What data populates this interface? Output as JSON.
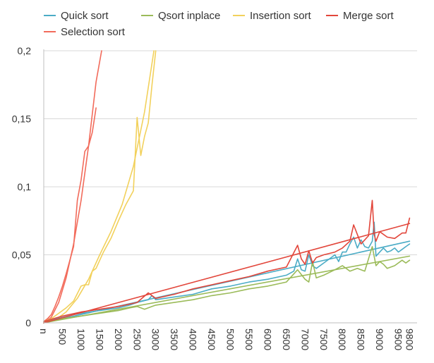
{
  "chart_data": {
    "type": "line",
    "title": "",
    "xlabel": "",
    "ylabel": "",
    "xlim": [
      0,
      10000
    ],
    "ylim": [
      0,
      0.2
    ],
    "y_ticks": [
      {
        "value": 0,
        "label": "0"
      },
      {
        "value": 0.05,
        "label": "0,05"
      },
      {
        "value": 0.1,
        "label": "0,1"
      },
      {
        "value": 0.15,
        "label": "0,15"
      },
      {
        "value": 0.2,
        "label": "0,2"
      }
    ],
    "x_ticks": [
      {
        "value": 0,
        "label": "n"
      },
      {
        "value": 500,
        "label": "500"
      },
      {
        "value": 1000,
        "label": "1000"
      },
      {
        "value": 1500,
        "label": "1500"
      },
      {
        "value": 2000,
        "label": "2000"
      },
      {
        "value": 2500,
        "label": "2500"
      },
      {
        "value": 3000,
        "label": "3000"
      },
      {
        "value": 3500,
        "label": "3500"
      },
      {
        "value": 4000,
        "label": "4000"
      },
      {
        "value": 4500,
        "label": "4500"
      },
      {
        "value": 5000,
        "label": "5000"
      },
      {
        "value": 5500,
        "label": "5500"
      },
      {
        "value": 6000,
        "label": "6000"
      },
      {
        "value": 6500,
        "label": "6500"
      },
      {
        "value": 7000,
        "label": "7000"
      },
      {
        "value": 7500,
        "label": "7500"
      },
      {
        "value": 8000,
        "label": "8000"
      },
      {
        "value": 8500,
        "label": "8500"
      },
      {
        "value": 9000,
        "label": "9000"
      },
      {
        "value": 9500,
        "label": "9500"
      },
      {
        "value": 9800,
        "label": "9800"
      }
    ],
    "grid": "y-major",
    "legend_position": "top",
    "legend": [
      {
        "name": "Quick sort",
        "color": "#4bacc6"
      },
      {
        "name": "Qsort inplace",
        "color": "#9bbb59"
      },
      {
        "name": "Insertion sort",
        "color": "#f2d15c"
      },
      {
        "name": "Merge sort",
        "color": "#e2463b"
      },
      {
        "name": "Selection sort",
        "color": "#f26b5b"
      }
    ],
    "series": [
      {
        "name": "Selection sort",
        "color": "#f26b5b",
        "x": [
          0,
          100,
          200,
          300,
          400,
          500,
          600,
          700,
          800,
          900,
          1000,
          1100,
          1200,
          1300,
          1400
        ],
        "y": [
          0.001,
          0.003,
          0.006,
          0.012,
          0.019,
          0.027,
          0.036,
          0.046,
          0.056,
          0.09,
          0.105,
          0.126,
          0.13,
          0.14,
          0.158
        ]
      },
      {
        "name": "Selection sort trend",
        "color": "#f26b5b",
        "x": [
          0,
          200,
          400,
          600,
          800,
          1000,
          1200,
          1400,
          1550
        ],
        "y": [
          0,
          0.004,
          0.015,
          0.033,
          0.058,
          0.09,
          0.13,
          0.177,
          0.2
        ]
      },
      {
        "name": "Insertion sort",
        "color": "#f2d15c",
        "x": [
          0,
          200,
          400,
          600,
          800,
          1000,
          1100,
          1200,
          1300,
          1400,
          1600,
          1800,
          2000,
          2200,
          2400,
          2500,
          2600,
          2700,
          2800,
          2900,
          3000
        ],
        "y": [
          0.001,
          0.003,
          0.007,
          0.011,
          0.016,
          0.027,
          0.028,
          0.028,
          0.038,
          0.04,
          0.052,
          0.062,
          0.075,
          0.087,
          0.097,
          0.151,
          0.123,
          0.137,
          0.147,
          0.175,
          0.2
        ]
      },
      {
        "name": "Insertion sort trend",
        "color": "#f2d15c",
        "x": [
          0,
          300,
          600,
          900,
          1200,
          1500,
          1800,
          2100,
          2400,
          2700,
          2950
        ],
        "y": [
          0,
          0.002,
          0.008,
          0.018,
          0.032,
          0.05,
          0.067,
          0.087,
          0.115,
          0.155,
          0.2
        ]
      },
      {
        "name": "Quick sort",
        "color": "#4bacc6",
        "x": [
          0,
          500,
          800,
          1000,
          1500,
          2000,
          2300,
          2500,
          2800,
          2900,
          3000,
          3500,
          4000,
          4500,
          5000,
          5500,
          6000,
          6500,
          6700,
          6800,
          6900,
          7000,
          7100,
          7200,
          7300,
          7500,
          7800,
          7900,
          8000,
          8100,
          8200,
          8300,
          8400,
          8500,
          8600,
          8700,
          8800,
          8850,
          8900,
          9000,
          9100,
          9200,
          9300,
          9400,
          9500,
          9600,
          9700,
          9800
        ],
        "y": [
          0.001,
          0.004,
          0.006,
          0.007,
          0.009,
          0.011,
          0.013,
          0.015,
          0.017,
          0.02,
          0.017,
          0.019,
          0.021,
          0.025,
          0.027,
          0.03,
          0.032,
          0.035,
          0.038,
          0.047,
          0.039,
          0.038,
          0.05,
          0.042,
          0.04,
          0.044,
          0.05,
          0.045,
          0.052,
          0.052,
          0.058,
          0.063,
          0.055,
          0.061,
          0.056,
          0.055,
          0.06,
          0.074,
          0.049,
          0.052,
          0.055,
          0.052,
          0.053,
          0.055,
          0.052,
          0.054,
          0.056,
          0.058
        ]
      },
      {
        "name": "Quick sort trend",
        "color": "#4bacc6",
        "x": [
          0,
          9800
        ],
        "y": [
          0,
          0.06
        ]
      },
      {
        "name": "Qsort inplace",
        "color": "#9bbb59",
        "x": [
          0,
          500,
          1000,
          1500,
          2000,
          2300,
          2500,
          2700,
          2900,
          3000,
          3500,
          4000,
          4500,
          5000,
          5500,
          6000,
          6500,
          6800,
          7000,
          7100,
          7200,
          7300,
          7500,
          7800,
          8000,
          8200,
          8400,
          8600,
          8800,
          8900,
          9000,
          9100,
          9200,
          9400,
          9600,
          9700,
          9800
        ],
        "y": [
          0.001,
          0.003,
          0.005,
          0.007,
          0.009,
          0.011,
          0.012,
          0.01,
          0.012,
          0.013,
          0.015,
          0.017,
          0.02,
          0.022,
          0.025,
          0.027,
          0.03,
          0.039,
          0.032,
          0.03,
          0.045,
          0.033,
          0.035,
          0.039,
          0.042,
          0.038,
          0.04,
          0.038,
          0.056,
          0.042,
          0.045,
          0.043,
          0.04,
          0.042,
          0.046,
          0.044,
          0.046
        ]
      },
      {
        "name": "Qsort inplace trend",
        "color": "#9bbb59",
        "x": [
          0,
          9800
        ],
        "y": [
          0,
          0.049
        ]
      },
      {
        "name": "Merge sort",
        "color": "#e2463b",
        "x": [
          0,
          500,
          1000,
          1500,
          2000,
          2500,
          2800,
          3000,
          3500,
          4000,
          4500,
          5000,
          5500,
          6000,
          6500,
          6800,
          6900,
          7000,
          7100,
          7200,
          7300,
          7500,
          7800,
          8000,
          8200,
          8300,
          8500,
          8700,
          8800,
          8850,
          8900,
          9000,
          9200,
          9400,
          9600,
          9700,
          9800
        ],
        "y": [
          0.001,
          0.005,
          0.008,
          0.01,
          0.012,
          0.015,
          0.022,
          0.018,
          0.021,
          0.025,
          0.028,
          0.031,
          0.034,
          0.038,
          0.041,
          0.057,
          0.047,
          0.043,
          0.053,
          0.044,
          0.048,
          0.05,
          0.052,
          0.055,
          0.06,
          0.072,
          0.058,
          0.064,
          0.09,
          0.065,
          0.06,
          0.067,
          0.063,
          0.062,
          0.066,
          0.066,
          0.077
        ]
      },
      {
        "name": "Merge sort trend",
        "color": "#e2463b",
        "x": [
          0,
          9800
        ],
        "y": [
          0,
          0.073
        ]
      }
    ]
  }
}
